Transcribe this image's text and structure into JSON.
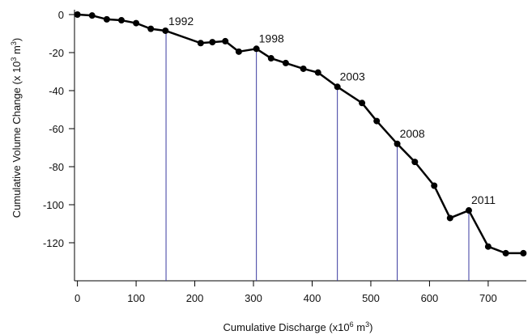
{
  "chart_data": {
    "type": "line",
    "xlabel_main": "Cumulative Discharge (x10",
    "xlabel_sup": "6",
    "xlabel_tail": " m",
    "xlabel_sup2": "3",
    "xlabel_close": ")",
    "ylabel_main": "Cumulative Volume Change (x 10",
    "ylabel_sup": "3",
    "ylabel_tail": " m",
    "ylabel_sup2": "3",
    "ylabel_close": ")",
    "xlim": [
      -5,
      765
    ],
    "ylim": [
      -140,
      0
    ],
    "x_ticks": [
      0,
      100,
      200,
      300,
      400,
      500,
      600,
      700
    ],
    "x_tick_labels": [
      "0",
      "100",
      "200",
      "300",
      "400",
      "500",
      "600",
      "700"
    ],
    "y_ticks": [
      0,
      -20,
      -40,
      -60,
      -80,
      -100,
      -120
    ],
    "y_tick_labels": [
      "0",
      "-20",
      "-40",
      "-60",
      "-80",
      "-100",
      "-120"
    ],
    "grid": false,
    "line_color": "#000000",
    "marker_color": "#000000",
    "vline_color": "#3a3aa0",
    "series": [
      {
        "x": [
          0,
          25,
          50,
          75,
          100,
          125,
          150,
          210,
          230,
          252,
          275,
          305,
          330,
          355,
          385,
          410,
          443,
          485,
          510,
          545,
          575,
          608,
          635,
          667,
          700,
          730,
          760
        ],
        "y": [
          0,
          -0.5,
          -2.5,
          -3,
          -4.5,
          -7.5,
          -8.5,
          -15,
          -14.5,
          -14,
          -19.5,
          -18,
          -23,
          -25.5,
          -28.5,
          -30.5,
          -38,
          -46.5,
          -56,
          -68,
          -77.5,
          -90,
          -107,
          -103,
          -122,
          -125.5,
          -125.5
        ]
      }
    ],
    "annotations": [
      {
        "label": "1992",
        "x": 151,
        "y": -9
      },
      {
        "label": "1998",
        "x": 305,
        "y": -18
      },
      {
        "label": "2003",
        "x": 443,
        "y": -38
      },
      {
        "label": "2008",
        "x": 545,
        "y": -68
      },
      {
        "label": "2011",
        "x": 667,
        "y": -103
      }
    ]
  }
}
